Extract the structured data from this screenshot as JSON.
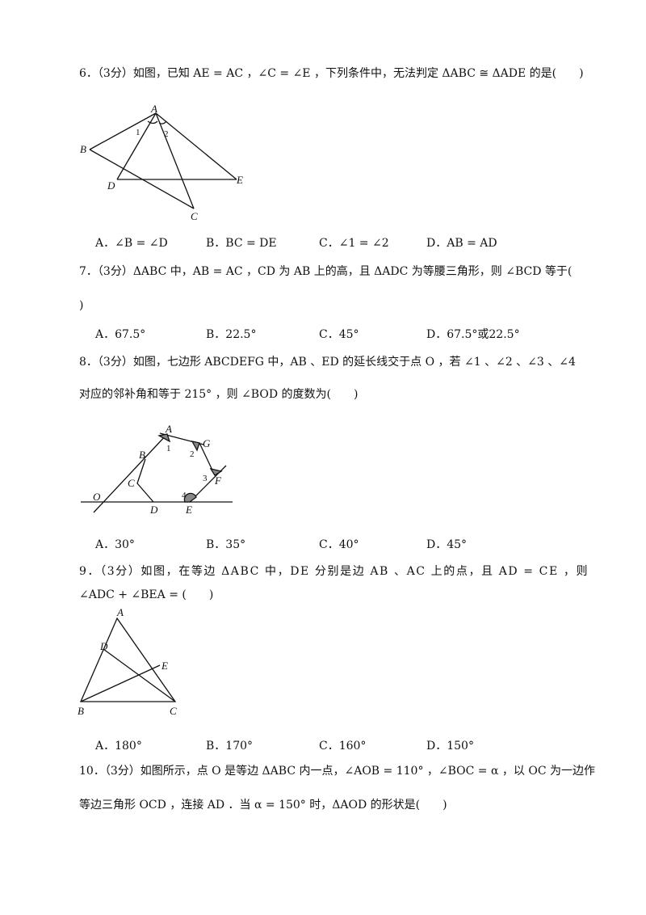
{
  "q6": {
    "line1": "6．（3分）如图，已知 AE = AC ，∠C = ∠E ，下列条件中，无法判定 ΔABC ≅ ΔADE 的是(　　)",
    "options": [
      "A．∠B = ∠D",
      "B．BC = DE",
      "C．∠1 = ∠2",
      "D．AB = AD"
    ],
    "figure_labels": {
      "A": "A",
      "B": "B",
      "C": "C",
      "D": "D",
      "E": "E",
      "one": "1",
      "two": "2"
    }
  },
  "q7": {
    "line1": "7．（3分）ΔABC 中，AB = AC ，CD 为 AB 上的高，且 ΔADC 为等腰三角形，则 ∠BCD 等于(",
    "line2": ")",
    "options": [
      "A．67.5°",
      "B．22.5°",
      "C．45°",
      "D．67.5°或22.5°"
    ]
  },
  "q8": {
    "line1": "8．（3分）如图，七边形 ABCDEFG 中，AB 、ED 的延长线交于点 O ，若 ∠1 、∠2 、∠3 、∠4",
    "line2": "对应的邻补角和等于 215° ，则 ∠BOD 的度数为(　　)",
    "options": [
      "A．30°",
      "B．35°",
      "C．40°",
      "D．45°"
    ],
    "figure_labels": {
      "A": "A",
      "B": "B",
      "C": "C",
      "D": "D",
      "E": "E",
      "F": "F",
      "G": "G",
      "O": "O",
      "one": "1",
      "two": "2",
      "three": "3",
      "four": "4"
    }
  },
  "q9": {
    "line1": "9．（3分）如图，在等边 ΔABC 中，DE 分别是边 AB 、AC 上的点，且 AD = CE ，则",
    "line2": "∠ADC + ∠BEA = (　　)",
    "options": [
      "A．180°",
      "B．170°",
      "C．160°",
      "D．150°"
    ],
    "figure_labels": {
      "A": "A",
      "B": "B",
      "C": "C",
      "D": "D",
      "E": "E"
    }
  },
  "q10": {
    "line1": "10．（3分）如图所示，点 O 是等边 ΔABC 内一点，∠AOB = 110° ，∠BOC = α ，以 OC 为一边作",
    "line2": "等边三角形 OCD ，连接 AD ．当 α = 150° 时，ΔAOD 的形状是(　　)"
  }
}
